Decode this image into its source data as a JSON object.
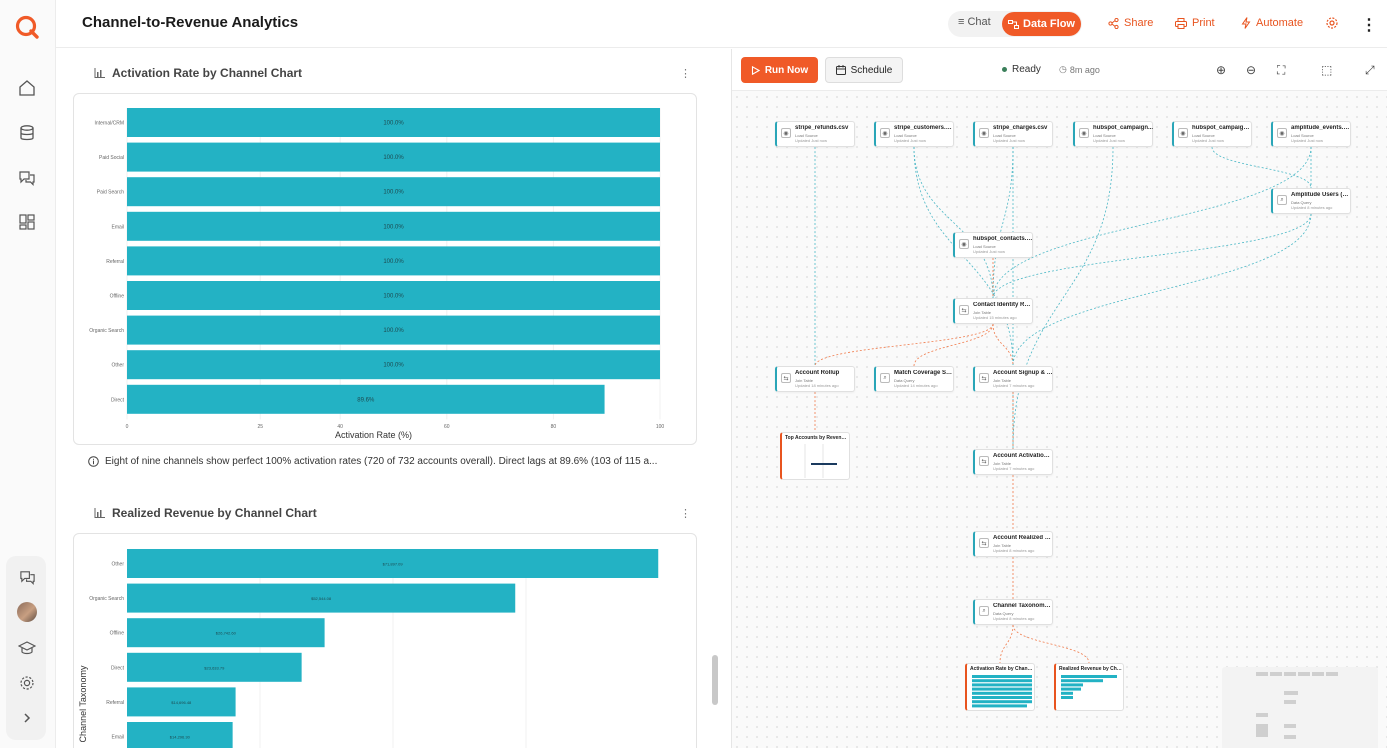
{
  "app": {
    "title": "Channel-to-Revenue Analytics"
  },
  "header": {
    "chat_label": "Chat",
    "flow_label": "Data Flow",
    "share_label": "Share",
    "print_label": "Print",
    "automate_label": "Automate"
  },
  "chart1": {
    "title": "Activation Rate by Channel Chart",
    "note": "Eight of nine channels show perfect 100% activation rates (720 of 732 accounts overall). Direct lags at 89.6% (103 of 115 a...",
    "chart_data": {
      "type": "bar",
      "orientation": "horizontal",
      "categories": [
        "Internal/CRM",
        "Paid Social",
        "Paid Search",
        "Email",
        "Referral",
        "Offline",
        "Organic Search",
        "Other",
        "Direct"
      ],
      "values": [
        100.0,
        100.0,
        100.0,
        100.0,
        100.0,
        100.0,
        100.0,
        100.0,
        89.6
      ],
      "value_labels": [
        "100.0%",
        "100.0%",
        "100.0%",
        "100.0%",
        "100.0%",
        "100.0%",
        "100.0%",
        "100.0%",
        "89.6%"
      ],
      "xlabel": "Activation Rate (%)",
      "ylabel": "",
      "xlim": [
        0,
        100
      ],
      "xticks": [
        "0",
        "25",
        "40",
        "60",
        "80",
        "100"
      ],
      "color": "#23b2c4"
    }
  },
  "chart2": {
    "title": "Realized Revenue by Channel Chart",
    "chart_data": {
      "type": "bar",
      "orientation": "horizontal",
      "categories": [
        "Other",
        "Organic Search",
        "Offline",
        "Direct",
        "Referral",
        "Email"
      ],
      "values": [
        71897.09,
        52544.08,
        26742.6,
        23633.79,
        14696.48,
        14296.3
      ],
      "value_labels": [
        "$71,897.09",
        "$52,544.08",
        "$26,742.60",
        "$23,633.79",
        "$14,696.48",
        "$14,296.30"
      ],
      "ylabel": "Channel Taxonomy",
      "xlim": [
        0,
        72000
      ],
      "color": "#23b2c4"
    }
  },
  "flow": {
    "run_label": "Run Now",
    "schedule_label": "Schedule",
    "status": "Ready",
    "last_run": "8m ago",
    "nodes": [
      {
        "title": "stripe_refunds.csv",
        "subtitle": "Load Source",
        "updated": "Updated Just now",
        "icon": "source-icon"
      },
      {
        "title": "stripe_customers.csv",
        "subtitle": "Load Source",
        "updated": "Updated Just now",
        "icon": "source-icon"
      },
      {
        "title": "stripe_charges.csv",
        "subtitle": "Load Source",
        "updated": "Updated Just now",
        "icon": "source-icon"
      },
      {
        "title": "hubspot_campaign...",
        "subtitle": "Load Source",
        "updated": "Updated Just now",
        "icon": "source-icon"
      },
      {
        "title": "hubspot_campaigns...",
        "subtitle": "Load Source",
        "updated": "Updated Just now",
        "icon": "source-icon"
      },
      {
        "title": "amplitude_events.csv",
        "subtitle": "Load Source",
        "updated": "Updated Just now",
        "icon": "source-icon"
      },
      {
        "title": "Amplitude Users (Dist...",
        "subtitle": "Data Query",
        "updated": "Updated 8 minutes ago",
        "icon": "query-icon"
      },
      {
        "title": "hubspot_contacts.csv",
        "subtitle": "Load Source",
        "updated": "Updated Just now",
        "icon": "source-icon"
      },
      {
        "title": "Contact Identity Reso...",
        "subtitle": "Join Table",
        "updated": "Updated 15 minutes ago",
        "icon": "join-icon"
      },
      {
        "title": "Account Rollup",
        "subtitle": "Join Table",
        "updated": "Updated 18 minutes ago",
        "icon": "join-icon"
      },
      {
        "title": "Match Coverage Su...",
        "subtitle": "Data Query",
        "updated": "Updated 14 minutes ago",
        "icon": "query-icon"
      },
      {
        "title": "Account Signup & Ch...",
        "subtitle": "Join Table",
        "updated": "Updated 7 minutes ago",
        "icon": "join-icon"
      },
      {
        "title": "Account Activation (I...",
        "subtitle": "Join Table",
        "updated": "Updated 7 minutes ago",
        "icon": "join-icon"
      },
      {
        "title": "Account Realized Rev...",
        "subtitle": "Join Table",
        "updated": "Updated 8 minutes ago",
        "icon": "join-icon"
      },
      {
        "title": "Channel Taxonomy C...",
        "subtitle": "Data Query",
        "updated": "Updated 8 minutes ago",
        "icon": "query-icon"
      }
    ],
    "viz_nodes": [
      {
        "title": "Top Accounts by Revenue Ch..."
      },
      {
        "title": "Activation Rate by Channel C..."
      },
      {
        "title": "Realized Revenue by Channel..."
      }
    ]
  },
  "colors": {
    "accent": "#f05a28",
    "bar": "#23b2c4",
    "edge_teal": "#4cb8c6",
    "edge_orange": "#f07a4a"
  }
}
